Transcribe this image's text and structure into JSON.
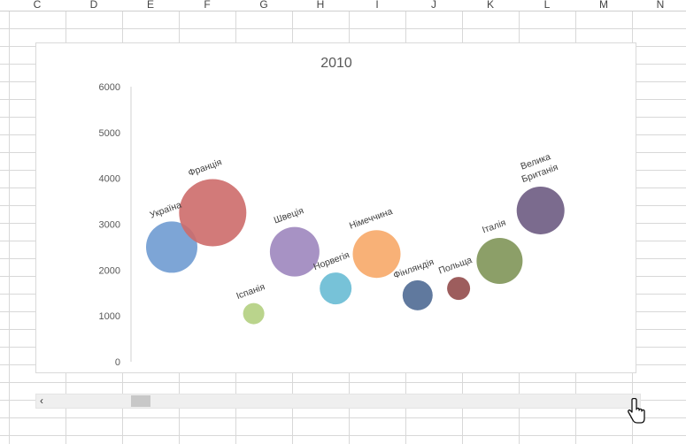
{
  "spreadsheet": {
    "columns": [
      "C",
      "D",
      "E",
      "F",
      "G",
      "H",
      "I",
      "J",
      "K",
      "L",
      "M",
      "N"
    ]
  },
  "scrollbar": {
    "left_arrow": "‹",
    "right_arrow": "›"
  },
  "chart_data": {
    "type": "bubble",
    "title": "2010",
    "xlabel": "",
    "ylabel": "",
    "ylim": [
      0,
      6000
    ],
    "yticks": [
      0,
      1000,
      2000,
      3000,
      4000,
      5000,
      6000
    ],
    "grid": false,
    "points": [
      {
        "label": "Україна",
        "x": 1,
        "y": 2500,
        "size": 29,
        "color": "#6f9bd1"
      },
      {
        "label": "Франція",
        "x": 2,
        "y": 3250,
        "size": 38,
        "color": "#cd6b6a"
      },
      {
        "label": "Іспанія",
        "x": 3,
        "y": 1050,
        "size": 12,
        "color": "#b2cf7f"
      },
      {
        "label": "Швеція",
        "x": 4,
        "y": 2400,
        "size": 28,
        "color": "#9d86be"
      },
      {
        "label": "Норвегія",
        "x": 5,
        "y": 1600,
        "size": 18,
        "color": "#68bbd4"
      },
      {
        "label": "Німеччина",
        "x": 6,
        "y": 2350,
        "size": 27,
        "color": "#f7a868"
      },
      {
        "label": "Фінляндія",
        "x": 7,
        "y": 1450,
        "size": 17,
        "color": "#4f6a94"
      },
      {
        "label": "Польща",
        "x": 8,
        "y": 1600,
        "size": 13,
        "color": "#924b4b"
      },
      {
        "label": "Італія",
        "x": 9,
        "y": 2200,
        "size": 26,
        "color": "#7f9558"
      },
      {
        "label": "Велика Британія",
        "x": 10,
        "y": 3300,
        "size": 27,
        "color": "#6d5b82"
      }
    ]
  }
}
